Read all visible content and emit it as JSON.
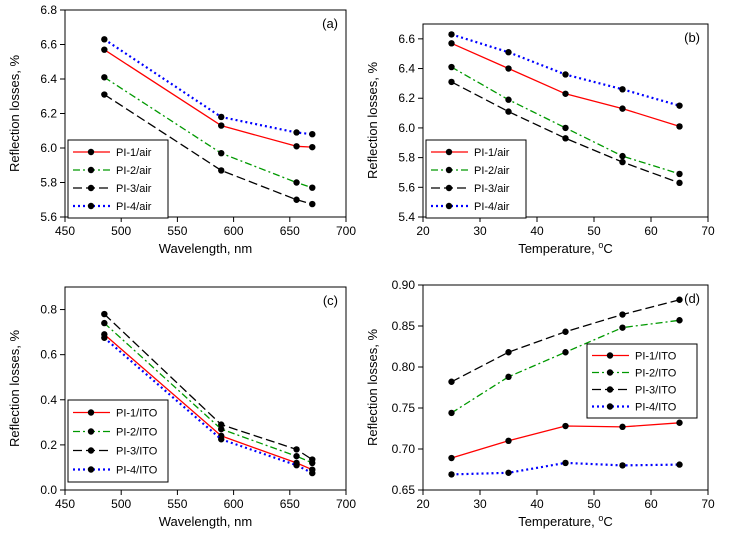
{
  "chart_data": [
    {
      "type": "line",
      "panel_label": "(a)",
      "xlabel": "Wavelength, nm",
      "ylabel": "Reflection losses, %",
      "xlim": [
        450,
        700
      ],
      "ylim": [
        5.6,
        6.8
      ],
      "xticks": [
        "450",
        "500",
        "550",
        "600",
        "650",
        "700"
      ],
      "yticks": [
        "5.6",
        "5.8",
        "6.0",
        "6.2",
        "6.4",
        "6.6",
        "6.8"
      ],
      "grid": false,
      "legend_position": "bottom-left",
      "x": [
        485,
        589,
        656,
        670
      ],
      "series": [
        {
          "name": "PI-1/air",
          "values": [
            6.57,
            6.13,
            6.01,
            6.005
          ],
          "color": "#ff0000",
          "dash": "solid"
        },
        {
          "name": "PI-2/air",
          "values": [
            6.41,
            5.97,
            5.8,
            5.77
          ],
          "color": "#009900",
          "dash": "dashdot"
        },
        {
          "name": "PI-3/air",
          "values": [
            6.31,
            5.87,
            5.7,
            5.675
          ],
          "color": "#000000",
          "dash": "dashed"
        },
        {
          "name": "PI-4/air",
          "values": [
            6.63,
            6.18,
            6.09,
            6.08
          ],
          "color": "#0000ff",
          "dash": "dotted"
        }
      ]
    },
    {
      "type": "line",
      "panel_label": "(b)",
      "xlabel": "Temperature, ",
      "xlabel_sup": "o",
      "xlabel_unit": "C",
      "ylabel": "Reflection losses, %",
      "xlim": [
        20,
        70
      ],
      "ylim": [
        5.4,
        6.7
      ],
      "xticks": [
        "20",
        "30",
        "40",
        "50",
        "60",
        "70"
      ],
      "yticks": [
        "5.4",
        "5.6",
        "5.8",
        "6.0",
        "6.2",
        "6.4",
        "6.6"
      ],
      "grid": false,
      "legend_position": "bottom-left",
      "x": [
        25,
        35,
        45,
        55,
        65
      ],
      "series": [
        {
          "name": "PI-1/air",
          "values": [
            6.57,
            6.4,
            6.23,
            6.13,
            6.01
          ],
          "color": "#ff0000",
          "dash": "solid"
        },
        {
          "name": "PI-2/air",
          "values": [
            6.41,
            6.19,
            6.0,
            5.81,
            5.69
          ],
          "color": "#009900",
          "dash": "dashdot"
        },
        {
          "name": "PI-3/air",
          "values": [
            6.31,
            6.11,
            5.93,
            5.77,
            5.63
          ],
          "color": "#000000",
          "dash": "dashed"
        },
        {
          "name": "PI-4/air",
          "values": [
            6.63,
            6.51,
            6.36,
            6.26,
            6.15
          ],
          "color": "#0000ff",
          "dash": "dotted"
        }
      ]
    },
    {
      "type": "line",
      "panel_label": "(c)",
      "xlabel": "Wavelength, nm",
      "ylabel": "Reflection losses, %",
      "xlim": [
        450,
        700
      ],
      "ylim": [
        0.0,
        0.9
      ],
      "xticks": [
        "450",
        "500",
        "550",
        "600",
        "650",
        "700"
      ],
      "yticks": [
        "0.0",
        "0.2",
        "0.4",
        "0.6",
        "0.8"
      ],
      "grid": false,
      "legend_position": "bottom-left",
      "x": [
        485,
        589,
        656,
        670
      ],
      "series": [
        {
          "name": "PI-1/ITO",
          "values": [
            0.69,
            0.24,
            0.12,
            0.09
          ],
          "color": "#ff0000",
          "dash": "solid"
        },
        {
          "name": "PI-2/ITO",
          "values": [
            0.74,
            0.27,
            0.15,
            0.12
          ],
          "color": "#009900",
          "dash": "dashdot"
        },
        {
          "name": "PI-3/ITO",
          "values": [
            0.78,
            0.29,
            0.18,
            0.135
          ],
          "color": "#000000",
          "dash": "dashed"
        },
        {
          "name": "PI-4/ITO",
          "values": [
            0.675,
            0.225,
            0.11,
            0.075
          ],
          "color": "#0000ff",
          "dash": "dotted"
        }
      ]
    },
    {
      "type": "line",
      "panel_label": "(d)",
      "xlabel": "Temperature, ",
      "xlabel_sup": "o",
      "xlabel_unit": "C",
      "ylabel": "Reflection losses, %",
      "xlim": [
        20,
        70
      ],
      "ylim": [
        0.65,
        0.9
      ],
      "xticks": [
        "20",
        "30",
        "40",
        "50",
        "60",
        "70"
      ],
      "yticks": [
        "0.65",
        "0.70",
        "0.75",
        "0.80",
        "0.85",
        "0.90"
      ],
      "grid": false,
      "legend_position": "center-right",
      "x": [
        25,
        35,
        45,
        55,
        65
      ],
      "series": [
        {
          "name": "PI-1/ITO",
          "values": [
            0.689,
            0.71,
            0.728,
            0.727,
            0.732
          ],
          "color": "#ff0000",
          "dash": "solid"
        },
        {
          "name": "PI-2/ITO",
          "values": [
            0.744,
            0.788,
            0.818,
            0.848,
            0.857
          ],
          "color": "#009900",
          "dash": "dashdot"
        },
        {
          "name": "PI-3/ITO",
          "values": [
            0.782,
            0.818,
            0.843,
            0.864,
            0.882
          ],
          "color": "#000000",
          "dash": "dashed"
        },
        {
          "name": "PI-4/ITO",
          "values": [
            0.669,
            0.671,
            0.683,
            0.68,
            0.681
          ],
          "color": "#0000ff",
          "dash": "dotted"
        }
      ]
    }
  ]
}
